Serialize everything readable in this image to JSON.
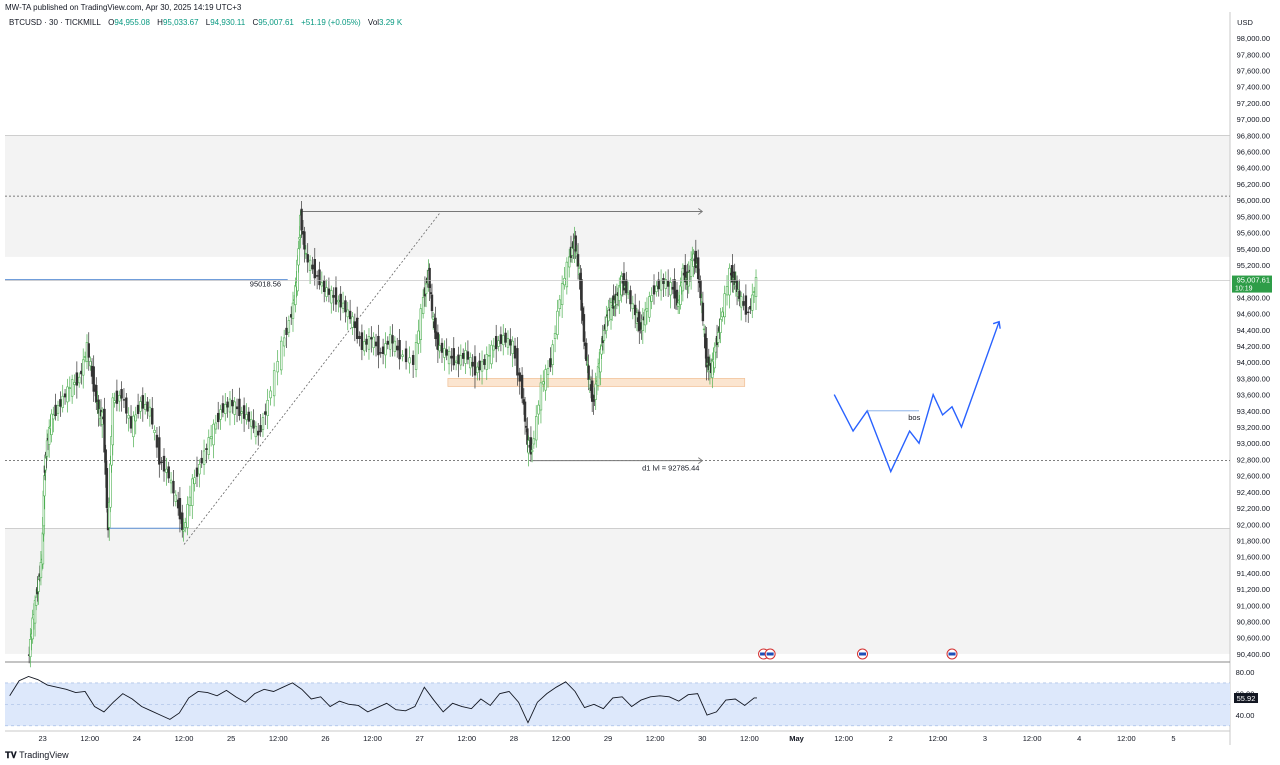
{
  "header": {
    "published": "MW-TA published on TradingView.com, Apr 30, 2025 14:19 UTC+3"
  },
  "legend": {
    "symbol": "BTCUSD · 30 · TICKMILL",
    "open_label": "O",
    "open": "94,955.08",
    "high_label": "H",
    "high": "95,033.67",
    "low_label": "L",
    "low": "94,930.11",
    "close_label": "C",
    "close": "95,007.61",
    "change": "+51.19 (+0.05%)",
    "vol_label": "Vol",
    "vol": "3.29 K"
  },
  "footer": {
    "brand": "TradingView"
  },
  "chart_data": {
    "type": "candlestick",
    "symbol": "BTCUSD",
    "timeframe": "30",
    "exchange": "TICKMILL",
    "currency_label": "USD",
    "price_axis": {
      "ylim": [
        90300,
        98100
      ],
      "ticks": [
        90400,
        90600,
        90800,
        91000,
        91200,
        91400,
        91600,
        91800,
        92000,
        92200,
        92400,
        92600,
        92800,
        93000,
        93200,
        93400,
        93600,
        93800,
        94000,
        94200,
        94400,
        94600,
        94800,
        95000,
        95200,
        95400,
        95600,
        95800,
        96000,
        96200,
        96400,
        96600,
        96800,
        97000,
        97200,
        97400,
        97600,
        97800,
        98000
      ],
      "tick_labels": [
        "90,400.00",
        "90,600.00",
        "90,800.00",
        "91,000.00",
        "91,200.00",
        "91,400.00",
        "91,600.00",
        "91,800.00",
        "92,000.00",
        "92,200.00",
        "92,400.00",
        "92,600.00",
        "92,800.00",
        "93,000.00",
        "93,200.00",
        "93,400.00",
        "93,600.00",
        "93,800.00",
        "94,000.00",
        "94,200.00",
        "94,400.00",
        "94,600.00",
        "94,800.00",
        "95,000.00",
        "95,200.00",
        "95,400.00",
        "95,600.00",
        "95,800.00",
        "96,000.00",
        "96,200.00",
        "96,400.00",
        "96,600.00",
        "96,800.00",
        "97,000.00",
        "97,200.00",
        "97,400.00",
        "97,600.00",
        "97,800.00",
        "98,000.00"
      ]
    },
    "time_axis": {
      "xlim": [
        22.6,
        27.15
      ],
      "ticks": [
        {
          "t": 23.0,
          "label": "23"
        },
        {
          "t": 23.5,
          "label": "12:00"
        },
        {
          "t": 24.0,
          "label": "24"
        },
        {
          "t": 24.5,
          "label": "12:00"
        },
        {
          "t": 25.0,
          "label": "25"
        },
        {
          "t": 25.5,
          "label": "12:00"
        },
        {
          "t": 26.0,
          "label": "26"
        },
        {
          "t": 26.5,
          "label": "12:00"
        },
        {
          "t": 27.0,
          "label": "27"
        },
        {
          "t": 27.5,
          "label": "12:00"
        },
        {
          "t": 28.0,
          "label": "28"
        },
        {
          "t": 28.5,
          "label": "12:00"
        },
        {
          "t": 29.0,
          "label": "29"
        },
        {
          "t": 29.5,
          "label": "12:00"
        },
        {
          "t": 30.0,
          "label": "30"
        },
        {
          "t": 30.5,
          "label": "12:00"
        },
        {
          "t": 31.0,
          "label": "May"
        },
        {
          "t": 31.5,
          "label": "12:00"
        },
        {
          "t": 32.0,
          "label": "2"
        },
        {
          "t": 32.5,
          "label": "12:00"
        },
        {
          "t": 33.0,
          "label": "3"
        },
        {
          "t": 33.5,
          "label": "12:00"
        },
        {
          "t": 34.0,
          "label": "4"
        },
        {
          "t": 34.5,
          "label": "12:00"
        },
        {
          "t": 35.0,
          "label": "5"
        }
      ]
    },
    "last_price": {
      "value": 95007.61,
      "label": "95,007.61",
      "countdown": "10:19"
    },
    "price_path": [
      [
        22.85,
        90300
      ],
      [
        22.9,
        90800
      ],
      [
        22.95,
        91200
      ],
      [
        23.0,
        91600
      ],
      [
        23.02,
        92600
      ],
      [
        23.05,
        93000
      ],
      [
        23.1,
        93300
      ],
      [
        23.2,
        93500
      ],
      [
        23.3,
        93700
      ],
      [
        23.4,
        93800
      ],
      [
        23.48,
        94200
      ],
      [
        23.55,
        93700
      ],
      [
        23.6,
        93400
      ],
      [
        23.65,
        93300
      ],
      [
        23.7,
        91900
      ],
      [
        23.75,
        93500
      ],
      [
        23.85,
        93600
      ],
      [
        23.95,
        93200
      ],
      [
        24.05,
        93500
      ],
      [
        24.15,
        93400
      ],
      [
        24.25,
        92800
      ],
      [
        24.35,
        92600
      ],
      [
        24.45,
        92200
      ],
      [
        24.5,
        91900
      ],
      [
        24.6,
        92500
      ],
      [
        24.7,
        92800
      ],
      [
        24.8,
        93100
      ],
      [
        24.9,
        93400
      ],
      [
        25.0,
        93500
      ],
      [
        25.1,
        93400
      ],
      [
        25.2,
        93300
      ],
      [
        25.3,
        93100
      ],
      [
        25.4,
        93500
      ],
      [
        25.55,
        94200
      ],
      [
        25.65,
        94600
      ],
      [
        25.7,
        95000
      ],
      [
        25.74,
        95800
      ],
      [
        25.8,
        95300
      ],
      [
        25.9,
        95100
      ],
      [
        26.0,
        94900
      ],
      [
        26.1,
        94800
      ],
      [
        26.2,
        94700
      ],
      [
        26.3,
        94500
      ],
      [
        26.4,
        94200
      ],
      [
        26.5,
        94300
      ],
      [
        26.6,
        94100
      ],
      [
        26.7,
        94300
      ],
      [
        26.8,
        94100
      ],
      [
        26.95,
        94000
      ],
      [
        27.05,
        94800
      ],
      [
        27.1,
        95100
      ],
      [
        27.15,
        94500
      ],
      [
        27.2,
        94200
      ],
      [
        27.3,
        94100
      ],
      [
        27.4,
        94000
      ],
      [
        27.5,
        94100
      ],
      [
        27.6,
        93900
      ],
      [
        27.7,
        94000
      ],
      [
        27.8,
        94200
      ],
      [
        27.9,
        94300
      ],
      [
        28.0,
        94200
      ],
      [
        28.1,
        93600
      ],
      [
        28.15,
        93000
      ],
      [
        28.2,
        92900
      ],
      [
        28.3,
        93700
      ],
      [
        28.4,
        94000
      ],
      [
        28.5,
        94800
      ],
      [
        28.6,
        95300
      ],
      [
        28.65,
        95500
      ],
      [
        28.7,
        95100
      ],
      [
        28.75,
        94300
      ],
      [
        28.8,
        93800
      ],
      [
        28.85,
        93500
      ],
      [
        28.9,
        93900
      ],
      [
        28.95,
        94300
      ],
      [
        29.0,
        94600
      ],
      [
        29.05,
        94700
      ],
      [
        29.1,
        94800
      ],
      [
        29.15,
        95000
      ],
      [
        29.2,
        94900
      ],
      [
        29.3,
        94600
      ],
      [
        29.35,
        94400
      ],
      [
        29.4,
        94600
      ],
      [
        29.5,
        94900
      ],
      [
        29.6,
        95000
      ],
      [
        29.7,
        94900
      ],
      [
        29.75,
        94700
      ],
      [
        29.8,
        95100
      ],
      [
        29.85,
        95000
      ],
      [
        29.9,
        95300
      ],
      [
        29.95,
        95200
      ],
      [
        30.0,
        94700
      ],
      [
        30.05,
        94000
      ],
      [
        30.1,
        93900
      ],
      [
        30.15,
        94200
      ],
      [
        30.2,
        94500
      ],
      [
        30.3,
        95100
      ],
      [
        30.35,
        95000
      ],
      [
        30.4,
        94800
      ],
      [
        30.5,
        94600
      ],
      [
        30.58,
        95000
      ]
    ],
    "volume_histogram_present": true,
    "oscillator": {
      "value_label": "55.92",
      "value": 55.92,
      "axis_labels": [
        "80.00",
        "60.00",
        "40.00"
      ],
      "axis_values": [
        80,
        60,
        40
      ],
      "band": [
        70,
        30
      ],
      "ylim": [
        28,
        82
      ],
      "series": [
        [
          22.65,
          58
        ],
        [
          22.75,
          72
        ],
        [
          22.85,
          76
        ],
        [
          22.95,
          73
        ],
        [
          23.05,
          68
        ],
        [
          23.15,
          66
        ],
        [
          23.25,
          64
        ],
        [
          23.35,
          61
        ],
        [
          23.45,
          62
        ],
        [
          23.55,
          48
        ],
        [
          23.65,
          43
        ],
        [
          23.75,
          52
        ],
        [
          23.85,
          60
        ],
        [
          23.95,
          55
        ],
        [
          24.05,
          48
        ],
        [
          24.15,
          44
        ],
        [
          24.25,
          40
        ],
        [
          24.35,
          36
        ],
        [
          24.45,
          42
        ],
        [
          24.55,
          56
        ],
        [
          24.65,
          62
        ],
        [
          24.75,
          61
        ],
        [
          24.85,
          58
        ],
        [
          24.95,
          63
        ],
        [
          25.05,
          57
        ],
        [
          25.15,
          52
        ],
        [
          25.25,
          60
        ],
        [
          25.35,
          64
        ],
        [
          25.45,
          62
        ],
        [
          25.55,
          66
        ],
        [
          25.65,
          70
        ],
        [
          25.75,
          64
        ],
        [
          25.85,
          55
        ],
        [
          25.95,
          57
        ],
        [
          26.05,
          48
        ],
        [
          26.15,
          53
        ],
        [
          26.25,
          50
        ],
        [
          26.35,
          49
        ],
        [
          26.45,
          43
        ],
        [
          26.55,
          47
        ],
        [
          26.65,
          51
        ],
        [
          26.75,
          45
        ],
        [
          26.85,
          44
        ],
        [
          26.95,
          48
        ],
        [
          27.05,
          66
        ],
        [
          27.15,
          54
        ],
        [
          27.25,
          43
        ],
        [
          27.35,
          51
        ],
        [
          27.45,
          48
        ],
        [
          27.55,
          46
        ],
        [
          27.65,
          55
        ],
        [
          27.75,
          49
        ],
        [
          27.85,
          60
        ],
        [
          27.95,
          62
        ],
        [
          28.05,
          52
        ],
        [
          28.15,
          33
        ],
        [
          28.25,
          52
        ],
        [
          28.35,
          60
        ],
        [
          28.45,
          66
        ],
        [
          28.55,
          71
        ],
        [
          28.65,
          62
        ],
        [
          28.75,
          47
        ],
        [
          28.85,
          50
        ],
        [
          28.95,
          46
        ],
        [
          29.05,
          56
        ],
        [
          29.15,
          57
        ],
        [
          29.25,
          48
        ],
        [
          29.35,
          54
        ],
        [
          29.45,
          57
        ],
        [
          29.55,
          58
        ],
        [
          29.65,
          57
        ],
        [
          29.75,
          53
        ],
        [
          29.85,
          59
        ],
        [
          29.95,
          60
        ],
        [
          30.05,
          40
        ],
        [
          30.15,
          43
        ],
        [
          30.25,
          54
        ],
        [
          30.35,
          55
        ],
        [
          30.45,
          49
        ],
        [
          30.55,
          56
        ],
        [
          30.58,
          56
        ]
      ]
    },
    "annotations": {
      "high_level": {
        "label": "95018.56",
        "value": 95018.56
      },
      "d1_level": {
        "label": "d1 lvl = 92785.44",
        "value": 92785.44
      },
      "bos_label": "bos",
      "projection_path": [
        [
          31.4,
          93600
        ],
        [
          31.6,
          93150
        ],
        [
          31.75,
          93400
        ],
        [
          32.0,
          92650
        ],
        [
          32.2,
          93150
        ],
        [
          32.3,
          93000
        ],
        [
          32.45,
          93600
        ],
        [
          32.55,
          93350
        ],
        [
          32.65,
          93450
        ],
        [
          32.75,
          93200
        ],
        [
          33.15,
          94500
        ]
      ],
      "zones": [
        {
          "from": 95300,
          "to": 96800
        },
        {
          "from": 90400,
          "to": 91950
        }
      ],
      "dotted_level": 96050,
      "ray_level": 95860,
      "support_zone": [
        93700,
        93800
      ]
    }
  }
}
